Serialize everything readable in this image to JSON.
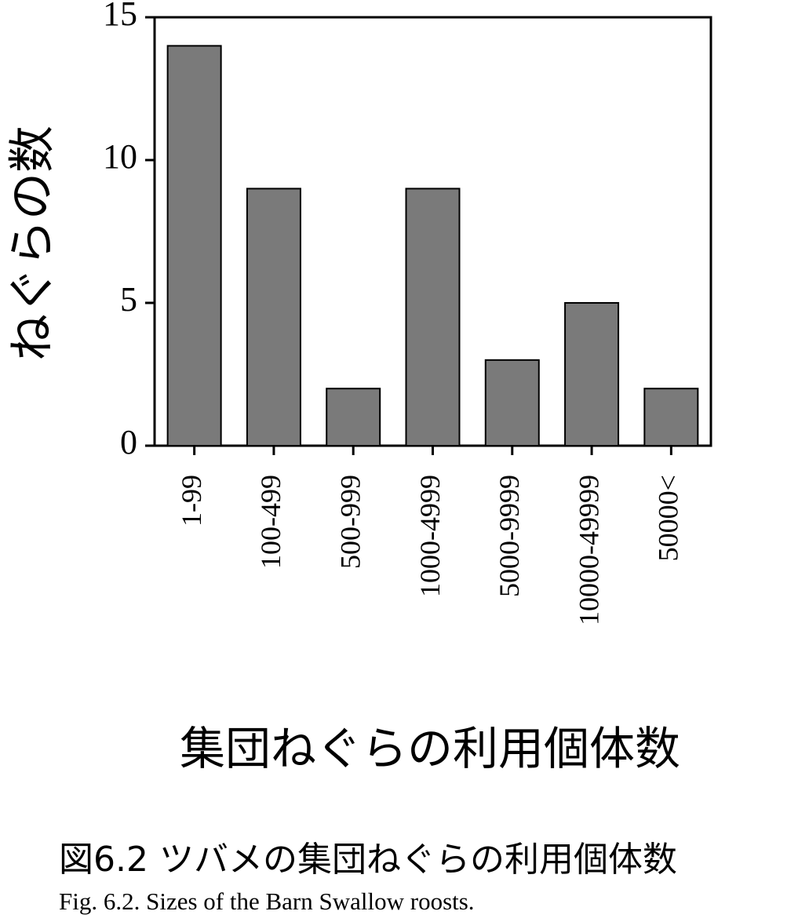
{
  "chart_data": {
    "type": "bar",
    "ylabel": "ねぐらの数",
    "xlabel": "集団ねぐらの利用個体数",
    "caption": "図6.2 ツバメの集団ねぐらの利用個体数",
    "caption_en": "Fig. 6.2. Sizes of the Barn Swallow roosts.",
    "categories": [
      "1-99",
      "100-499",
      "500-999",
      "1000-4999",
      "5000-9999",
      "10000-49999",
      "50000<"
    ],
    "values": [
      14,
      9,
      2,
      9,
      3,
      5,
      2
    ],
    "color": "#7a7a7a",
    "ylim": [
      0,
      15
    ],
    "yticks": [
      0,
      5,
      10,
      15
    ]
  }
}
